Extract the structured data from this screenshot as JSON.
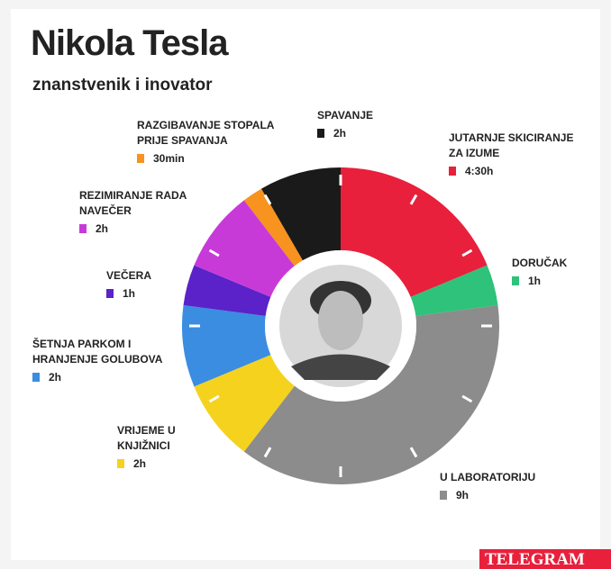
{
  "chart_data": {
    "type": "donut",
    "title": "Nikola Tesla",
    "subtitle": "znanstvenik i inovator",
    "categories": [
      "JUTARNJE SKICIRANJE ZA IZUME",
      "DORUČAK",
      "U LABORATORIJU",
      "VRIJEME U KNJIŽNICI",
      "ŠETNJA PARKOM I HRANJENJE GOLUBOVA",
      "VEČERA",
      "REZIMIRANJE RADA NAVEČER",
      "RAZGIBAVANJE STOPALA PRIJE SPAVANJA",
      "SPAVANJE"
    ],
    "values": [
      4.5,
      1,
      9,
      2,
      2,
      1,
      2,
      0.5,
      2
    ],
    "value_labels": [
      "4:30h",
      "1h",
      "9h",
      "2h",
      "2h",
      "1h",
      "2h",
      "30min",
      "2h"
    ],
    "colors": [
      "#e8203c",
      "#2ec27a",
      "#8c8c8c",
      "#f5d21e",
      "#3a8de0",
      "#5a22c8",
      "#c83ad8",
      "#f7931e",
      "#1a1a1a"
    ],
    "logo": "TELEGRAM"
  }
}
